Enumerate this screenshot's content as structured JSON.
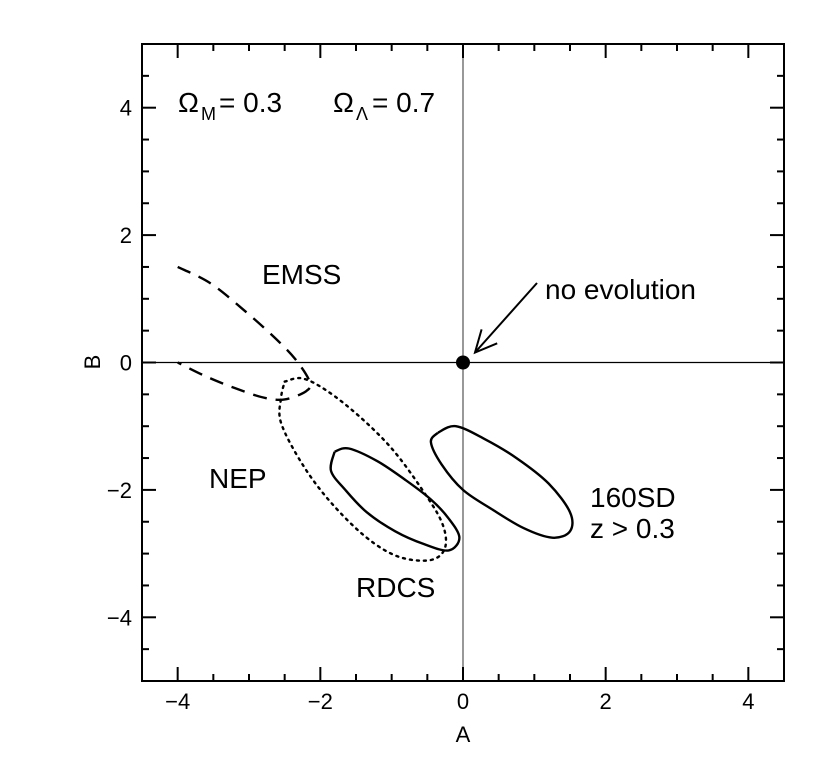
{
  "chart_data": {
    "type": "scatter",
    "xlabel": "A",
    "ylabel": "B",
    "xlim": [
      -4.5,
      4.5
    ],
    "ylim": [
      -5,
      5
    ],
    "xticks": [
      -4,
      -2,
      0,
      2,
      4
    ],
    "yticks": [
      -4,
      -2,
      0,
      2,
      4
    ],
    "xtick_labels": [
      "−4",
      "−2",
      "0",
      "2",
      "4"
    ],
    "ytick_labels": [
      "−4",
      "−2",
      "0",
      "2",
      "4"
    ],
    "grid": false,
    "reference_lines": {
      "x": 0,
      "y": 0
    },
    "cosmology": {
      "omega_symbol": "Ω",
      "omega_m_sub": "M",
      "omega_m_value": "= 0.3",
      "omega_l_sub": "Λ",
      "omega_l_value": "= 0.7"
    },
    "point": {
      "name": "no evolution",
      "x": 0,
      "y": 0
    },
    "arrow": {
      "from": [
        0.35,
        -0.5
      ],
      "to": [
        0.05,
        -0.1
      ]
    },
    "series": [
      {
        "name": "EMSS",
        "style": "dashed",
        "points": [
          [
            -4.0,
            1.5
          ],
          [
            -3.55,
            1.25
          ],
          [
            -3.1,
            0.85
          ],
          [
            -2.65,
            0.4
          ],
          [
            -2.35,
            0.05
          ],
          [
            -2.15,
            -0.3
          ],
          [
            -2.2,
            -0.45
          ],
          [
            -2.5,
            -0.58
          ],
          [
            -2.8,
            -0.55
          ],
          [
            -3.2,
            -0.4
          ],
          [
            -3.6,
            -0.22
          ],
          [
            -4.0,
            0.0
          ]
        ]
      },
      {
        "name": "NEP",
        "style": "dotted",
        "points": [
          [
            -2.5,
            -0.3
          ],
          [
            -2.25,
            -0.25
          ],
          [
            -1.9,
            -0.45
          ],
          [
            -1.45,
            -0.85
          ],
          [
            -1.0,
            -1.35
          ],
          [
            -0.6,
            -1.95
          ],
          [
            -0.3,
            -2.5
          ],
          [
            -0.25,
            -2.9
          ],
          [
            -0.45,
            -3.1
          ],
          [
            -0.9,
            -3.05
          ],
          [
            -1.35,
            -2.75
          ],
          [
            -1.85,
            -2.2
          ],
          [
            -2.25,
            -1.6
          ],
          [
            -2.55,
            -0.95
          ],
          [
            -2.55,
            -0.55
          ],
          [
            -2.5,
            -0.3
          ]
        ]
      },
      {
        "name": "RDCS",
        "style": "solid",
        "points": [
          [
            -1.8,
            -1.4
          ],
          [
            -1.6,
            -1.35
          ],
          [
            -1.2,
            -1.55
          ],
          [
            -0.8,
            -1.85
          ],
          [
            -0.45,
            -2.15
          ],
          [
            -0.2,
            -2.45
          ],
          [
            -0.05,
            -2.75
          ],
          [
            -0.2,
            -2.95
          ],
          [
            -0.55,
            -2.85
          ],
          [
            -0.95,
            -2.65
          ],
          [
            -1.35,
            -2.35
          ],
          [
            -1.65,
            -2.0
          ],
          [
            -1.85,
            -1.7
          ],
          [
            -1.8,
            -1.4
          ]
        ]
      },
      {
        "name": "160SD",
        "style": "solid",
        "points": [
          [
            -0.35,
            -1.1
          ],
          [
            -0.1,
            -1.0
          ],
          [
            0.3,
            -1.2
          ],
          [
            0.75,
            -1.5
          ],
          [
            1.2,
            -1.9
          ],
          [
            1.5,
            -2.35
          ],
          [
            1.5,
            -2.65
          ],
          [
            1.25,
            -2.75
          ],
          [
            0.85,
            -2.6
          ],
          [
            0.4,
            -2.3
          ],
          [
            0.0,
            -2.0
          ],
          [
            -0.3,
            -1.6
          ],
          [
            -0.45,
            -1.25
          ],
          [
            -0.35,
            -1.1
          ]
        ]
      }
    ],
    "annotations": {
      "emss": "EMSS",
      "nep": "NEP",
      "rdcs": "RDCS",
      "sd160": "160SD",
      "z_cut": "z > 0.3",
      "no_evolution": "no evolution"
    }
  }
}
